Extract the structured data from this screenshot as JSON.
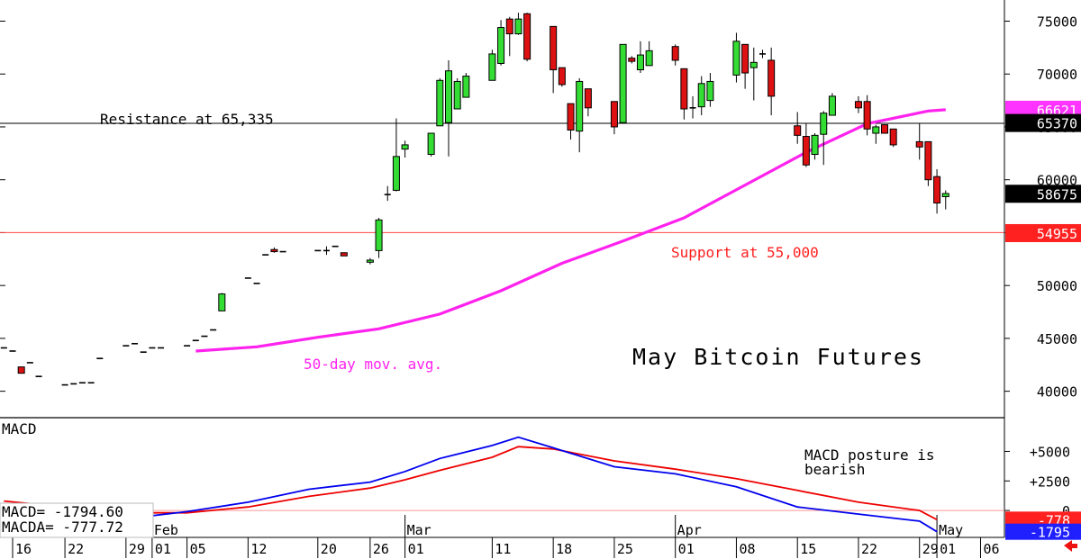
{
  "chart_data": [
    {
      "type": "candlestick",
      "title": "May Bitcoin Futures",
      "ylim": [
        37500,
        77000
      ],
      "y_ticks": [
        40000,
        45000,
        50000,
        55000,
        60000,
        65000,
        70000,
        75000
      ],
      "y_tick_labels": [
        "40000",
        "45000",
        "50000",
        "55000",
        "60000",
        "65000",
        "70000",
        "75000"
      ],
      "x_tick_labels": [
        {
          "label": "16",
          "date": "2024-01-16"
        },
        {
          "label": "22",
          "date": "2024-01-22"
        },
        {
          "label": "29",
          "date": "2024-01-29"
        },
        {
          "label": "01",
          "date": "2024-02-01"
        },
        {
          "label": "05",
          "date": "2024-02-05"
        },
        {
          "label": "12",
          "date": "2024-02-12"
        },
        {
          "label": "20",
          "date": "2024-02-20"
        },
        {
          "label": "26",
          "date": "2024-02-26"
        },
        {
          "label": "01",
          "date": "2024-03-01"
        },
        {
          "label": "11",
          "date": "2024-03-11"
        },
        {
          "label": "18",
          "date": "2024-03-18"
        },
        {
          "label": "25",
          "date": "2024-03-25"
        },
        {
          "label": "01",
          "date": "2024-04-01"
        },
        {
          "label": "08",
          "date": "2024-04-08"
        },
        {
          "label": "15",
          "date": "2024-04-15"
        },
        {
          "label": "22",
          "date": "2024-04-22"
        },
        {
          "label": "29",
          "date": "2024-04-29"
        },
        {
          "label": "01",
          "date": "2024-05-01"
        },
        {
          "label": "06",
          "date": "2024-05-06"
        }
      ],
      "month_labels": [
        {
          "label": "Feb",
          "date": "2024-02-01"
        },
        {
          "label": "Mar",
          "date": "2024-03-01"
        },
        {
          "label": "Apr",
          "date": "2024-04-01"
        },
        {
          "label": "May",
          "date": "2024-05-01"
        }
      ],
      "candles": [
        {
          "date": "2024-01-15",
          "o": 44100,
          "h": 44100,
          "l": 44100,
          "c": 44100
        },
        {
          "date": "2024-01-16",
          "o": 43800,
          "h": 43800,
          "l": 43800,
          "c": 43800
        },
        {
          "date": "2024-01-17",
          "o": 42300,
          "h": 42300,
          "l": 41700,
          "c": 41700
        },
        {
          "date": "2024-01-18",
          "o": 42700,
          "h": 42700,
          "l": 42700,
          "c": 42700
        },
        {
          "date": "2024-01-19",
          "o": 41400,
          "h": 41400,
          "l": 41400,
          "c": 41400
        },
        {
          "date": "2024-01-22",
          "o": 40600,
          "h": 40600,
          "l": 40600,
          "c": 40600
        },
        {
          "date": "2024-01-23",
          "o": 40700,
          "h": 40700,
          "l": 40700,
          "c": 40700
        },
        {
          "date": "2024-01-24",
          "o": 40800,
          "h": 40800,
          "l": 40800,
          "c": 40800
        },
        {
          "date": "2024-01-25",
          "o": 40800,
          "h": 40800,
          "l": 40800,
          "c": 40800
        },
        {
          "date": "2024-01-26",
          "o": 43100,
          "h": 43100,
          "l": 43100,
          "c": 43100
        },
        {
          "date": "2024-01-29",
          "o": 44300,
          "h": 44300,
          "l": 44300,
          "c": 44300
        },
        {
          "date": "2024-01-30",
          "o": 44500,
          "h": 44500,
          "l": 44500,
          "c": 44500
        },
        {
          "date": "2024-01-31",
          "o": 43700,
          "h": 43700,
          "l": 43700,
          "c": 43700
        },
        {
          "date": "2024-02-01",
          "o": 44100,
          "h": 44100,
          "l": 44100,
          "c": 44100
        },
        {
          "date": "2024-02-02",
          "o": 44100,
          "h": 44100,
          "l": 44100,
          "c": 44100
        },
        {
          "date": "2024-02-05",
          "o": 44300,
          "h": 44300,
          "l": 44300,
          "c": 44300
        },
        {
          "date": "2024-02-06",
          "o": 44800,
          "h": 44800,
          "l": 44800,
          "c": 44800
        },
        {
          "date": "2024-02-07",
          "o": 45200,
          "h": 45200,
          "l": 45200,
          "c": 45200
        },
        {
          "date": "2024-02-08",
          "o": 45800,
          "h": 45800,
          "l": 45800,
          "c": 45800
        },
        {
          "date": "2024-02-09",
          "o": 47600,
          "h": 49300,
          "l": 47600,
          "c": 49200
        },
        {
          "date": "2024-02-12",
          "o": 50700,
          "h": 50700,
          "l": 50700,
          "c": 50700
        },
        {
          "date": "2024-02-13",
          "o": 50200,
          "h": 50200,
          "l": 50200,
          "c": 50200
        },
        {
          "date": "2024-02-14",
          "o": 52900,
          "h": 52900,
          "l": 52900,
          "c": 52900
        },
        {
          "date": "2024-02-15",
          "o": 53400,
          "h": 53600,
          "l": 53100,
          "c": 53200
        },
        {
          "date": "2024-02-16",
          "o": 53200,
          "h": 53200,
          "l": 53200,
          "c": 53200
        },
        {
          "date": "2024-02-20",
          "o": 53300,
          "h": 53300,
          "l": 53300,
          "c": 53300
        },
        {
          "date": "2024-02-21",
          "o": 53300,
          "h": 53700,
          "l": 52900,
          "c": 53300
        },
        {
          "date": "2024-02-22",
          "o": 53700,
          "h": 53700,
          "l": 53700,
          "c": 53700
        },
        {
          "date": "2024-02-23",
          "o": 53100,
          "h": 53100,
          "l": 52800,
          "c": 52800
        },
        {
          "date": "2024-02-26",
          "o": 52200,
          "h": 52600,
          "l": 52000,
          "c": 52400
        },
        {
          "date": "2024-02-27",
          "o": 53300,
          "h": 56400,
          "l": 52600,
          "c": 56200
        },
        {
          "date": "2024-02-28",
          "o": 58600,
          "h": 59400,
          "l": 58000,
          "c": 58600
        },
        {
          "date": "2024-02-29",
          "o": 59000,
          "h": 65800,
          "l": 58900,
          "c": 62200
        },
        {
          "date": "2024-03-01",
          "o": 62900,
          "h": 63700,
          "l": 62100,
          "c": 63300
        },
        {
          "date": "2024-03-04",
          "o": 62400,
          "h": 64400,
          "l": 62200,
          "c": 64400
        },
        {
          "date": "2024-03-05",
          "o": 65100,
          "h": 69600,
          "l": 65100,
          "c": 69400
        },
        {
          "date": "2024-03-06",
          "o": 65400,
          "h": 71300,
          "l": 62200,
          "c": 70300
        },
        {
          "date": "2024-03-07",
          "o": 66700,
          "h": 69600,
          "l": 66700,
          "c": 69300
        },
        {
          "date": "2024-03-08",
          "o": 67800,
          "h": 70100,
          "l": 67800,
          "c": 69800
        },
        {
          "date": "2024-03-11",
          "o": 69400,
          "h": 72300,
          "l": 69400,
          "c": 71900
        },
        {
          "date": "2024-03-12",
          "o": 71000,
          "h": 75100,
          "l": 70800,
          "c": 74400
        },
        {
          "date": "2024-03-13",
          "o": 75200,
          "h": 75400,
          "l": 71700,
          "c": 73800
        },
        {
          "date": "2024-03-14",
          "o": 73800,
          "h": 75800,
          "l": 73700,
          "c": 75200
        },
        {
          "date": "2024-03-15",
          "o": 75700,
          "h": 75800,
          "l": 71200,
          "c": 71400
        },
        {
          "date": "2024-03-18",
          "o": 74500,
          "h": 74500,
          "l": 68200,
          "c": 70400
        },
        {
          "date": "2024-03-19",
          "o": 70600,
          "h": 70600,
          "l": 68800,
          "c": 69000
        },
        {
          "date": "2024-03-20",
          "o": 67200,
          "h": 67200,
          "l": 63800,
          "c": 64700
        },
        {
          "date": "2024-03-21",
          "o": 64600,
          "h": 69600,
          "l": 62600,
          "c": 69300
        },
        {
          "date": "2024-03-22",
          "o": 68600,
          "h": 68600,
          "l": 66000,
          "c": 66800
        },
        {
          "date": "2024-03-25",
          "o": 67400,
          "h": 67400,
          "l": 64300,
          "c": 65000
        },
        {
          "date": "2024-03-26",
          "o": 65400,
          "h": 72800,
          "l": 65400,
          "c": 72800
        },
        {
          "date": "2024-03-27",
          "o": 71500,
          "h": 71700,
          "l": 71000,
          "c": 71200
        },
        {
          "date": "2024-03-28",
          "o": 70400,
          "h": 73100,
          "l": 70100,
          "c": 71800
        },
        {
          "date": "2024-03-29",
          "o": 70800,
          "h": 73100,
          "l": 70800,
          "c": 72200
        },
        {
          "date": "2024-04-01",
          "o": 72600,
          "h": 72800,
          "l": 70800,
          "c": 71300
        },
        {
          "date": "2024-04-02",
          "o": 70500,
          "h": 70500,
          "l": 65700,
          "c": 66700
        },
        {
          "date": "2024-04-03",
          "o": 66800,
          "h": 67900,
          "l": 65800,
          "c": 66800
        },
        {
          "date": "2024-04-04",
          "o": 66900,
          "h": 69800,
          "l": 66100,
          "c": 69100
        },
        {
          "date": "2024-04-05",
          "o": 67500,
          "h": 70100,
          "l": 66900,
          "c": 69300
        },
        {
          "date": "2024-04-08",
          "o": 69900,
          "h": 73900,
          "l": 69200,
          "c": 73100
        },
        {
          "date": "2024-04-09",
          "o": 72800,
          "h": 72800,
          "l": 68600,
          "c": 70100
        },
        {
          "date": "2024-04-10",
          "o": 70600,
          "h": 72500,
          "l": 67500,
          "c": 71100
        },
        {
          "date": "2024-04-11",
          "o": 71900,
          "h": 72300,
          "l": 71500,
          "c": 71900
        },
        {
          "date": "2024-04-12",
          "o": 71300,
          "h": 72500,
          "l": 66100,
          "c": 67900
        },
        {
          "date": "2024-04-15",
          "o": 65100,
          "h": 66400,
          "l": 63400,
          "c": 64200
        },
        {
          "date": "2024-04-16",
          "o": 64100,
          "h": 65300,
          "l": 61200,
          "c": 61400
        },
        {
          "date": "2024-04-17",
          "o": 62400,
          "h": 64400,
          "l": 61900,
          "c": 64200
        },
        {
          "date": "2024-04-18",
          "o": 64300,
          "h": 66500,
          "l": 61400,
          "c": 66300
        },
        {
          "date": "2024-04-19",
          "o": 66100,
          "h": 68200,
          "l": 66100,
          "c": 67900
        },
        {
          "date": "2024-04-22",
          "o": 67400,
          "h": 67900,
          "l": 66300,
          "c": 66800
        },
        {
          "date": "2024-04-23",
          "o": 67400,
          "h": 68000,
          "l": 64200,
          "c": 64800
        },
        {
          "date": "2024-04-24",
          "o": 64400,
          "h": 65200,
          "l": 63400,
          "c": 65000
        },
        {
          "date": "2024-04-25",
          "o": 65200,
          "h": 65200,
          "l": 64400,
          "c": 64400
        },
        {
          "date": "2024-04-26",
          "o": 64800,
          "h": 64800,
          "l": 63100,
          "c": 63300
        },
        {
          "date": "2024-04-29",
          "o": 63600,
          "h": 65300,
          "l": 61900,
          "c": 63100
        },
        {
          "date": "2024-04-30",
          "o": 63600,
          "h": 63600,
          "l": 59400,
          "c": 60000
        },
        {
          "date": "2024-05-01",
          "o": 60300,
          "h": 61000,
          "l": 56800,
          "c": 57800
        },
        {
          "date": "2024-05-02",
          "o": 58400,
          "h": 59000,
          "l": 57200,
          "c": 58700
        }
      ],
      "ma_50day": {
        "name": "50-day mov. avg.",
        "points": [
          {
            "date": "2024-02-06",
            "v": 43800
          },
          {
            "date": "2024-02-13",
            "v": 44200
          },
          {
            "date": "2024-02-20",
            "v": 45100
          },
          {
            "date": "2024-02-27",
            "v": 45900
          },
          {
            "date": "2024-03-05",
            "v": 47300
          },
          {
            "date": "2024-03-12",
            "v": 49500
          },
          {
            "date": "2024-03-19",
            "v": 52100
          },
          {
            "date": "2024-03-26",
            "v": 54200
          },
          {
            "date": "2024-04-02",
            "v": 56400
          },
          {
            "date": "2024-04-09",
            "v": 59500
          },
          {
            "date": "2024-04-16",
            "v": 62600
          },
          {
            "date": "2024-04-23",
            "v": 65300
          },
          {
            "date": "2024-04-30",
            "v": 66500
          },
          {
            "date": "2024-05-02",
            "v": 66621
          }
        ]
      },
      "resistance": {
        "value": 65335,
        "label": "Resistance at 65,335"
      },
      "support": {
        "value": 55000,
        "label": "Support at 55,000"
      },
      "price_boxes": [
        {
          "value": 66621,
          "label": "66621",
          "color": "#ff33ff"
        },
        {
          "value": 65370,
          "label": "65370",
          "color": "#000000"
        },
        {
          "value": 58675,
          "label": "58675",
          "color": "#000000"
        },
        {
          "value": 54955,
          "label": "54955",
          "color": "#ff2020"
        }
      ],
      "colors": {
        "up": "#33dd33",
        "down": "#dd1111",
        "ma": "#ff22ee",
        "support": "#ff4444"
      }
    },
    {
      "type": "line",
      "title": "MACD",
      "ylim": [
        -2200,
        7700
      ],
      "y_ticks": [
        0,
        2500,
        5000
      ],
      "y_tick_labels": [
        "0",
        "+2500",
        "+5000"
      ],
      "series": [
        {
          "name": "MACD",
          "color": "#0000ee",
          "points": [
            {
              "date": "2024-01-15",
              "v": 600
            },
            {
              "date": "2024-01-22",
              "v": -500
            },
            {
              "date": "2024-01-29",
              "v": -700
            },
            {
              "date": "2024-02-05",
              "v": -100
            },
            {
              "date": "2024-02-12",
              "v": 700
            },
            {
              "date": "2024-02-19",
              "v": 1800
            },
            {
              "date": "2024-02-26",
              "v": 2400
            },
            {
              "date": "2024-03-01",
              "v": 3300
            },
            {
              "date": "2024-03-05",
              "v": 4400
            },
            {
              "date": "2024-03-11",
              "v": 5500
            },
            {
              "date": "2024-03-14",
              "v": 6200
            },
            {
              "date": "2024-03-18",
              "v": 5300
            },
            {
              "date": "2024-03-25",
              "v": 3700
            },
            {
              "date": "2024-04-01",
              "v": 3100
            },
            {
              "date": "2024-04-08",
              "v": 2000
            },
            {
              "date": "2024-04-15",
              "v": 300
            },
            {
              "date": "2024-04-22",
              "v": -300
            },
            {
              "date": "2024-04-29",
              "v": -900
            },
            {
              "date": "2024-05-01",
              "v": -1795
            }
          ]
        },
        {
          "name": "MACDA",
          "color": "#ee0000",
          "points": [
            {
              "date": "2024-01-15",
              "v": 800
            },
            {
              "date": "2024-01-22",
              "v": 300
            },
            {
              "date": "2024-01-29",
              "v": -200
            },
            {
              "date": "2024-02-05",
              "v": -200
            },
            {
              "date": "2024-02-12",
              "v": 300
            },
            {
              "date": "2024-02-19",
              "v": 1200
            },
            {
              "date": "2024-02-26",
              "v": 1900
            },
            {
              "date": "2024-03-01",
              "v": 2600
            },
            {
              "date": "2024-03-05",
              "v": 3400
            },
            {
              "date": "2024-03-11",
              "v": 4500
            },
            {
              "date": "2024-03-14",
              "v": 5400
            },
            {
              "date": "2024-03-18",
              "v": 5200
            },
            {
              "date": "2024-03-25",
              "v": 4200
            },
            {
              "date": "2024-04-01",
              "v": 3500
            },
            {
              "date": "2024-04-08",
              "v": 2700
            },
            {
              "date": "2024-04-15",
              "v": 1700
            },
            {
              "date": "2024-04-22",
              "v": 700
            },
            {
              "date": "2024-04-29",
              "v": 0
            },
            {
              "date": "2024-05-01",
              "v": -778
            }
          ]
        }
      ],
      "readouts": {
        "macd": "MACD= -1794.60",
        "macda": "MACDA= -777.72"
      },
      "annotation": "MACD posture is\nbearish",
      "value_boxes": [
        {
          "value": -778,
          "label": "-778",
          "color": "#ff2020"
        },
        {
          "value": -1795,
          "label": "-1795",
          "color": "#2020ff"
        }
      ]
    }
  ],
  "indicators": {
    "red_arrow": "arrow-left-icon"
  }
}
